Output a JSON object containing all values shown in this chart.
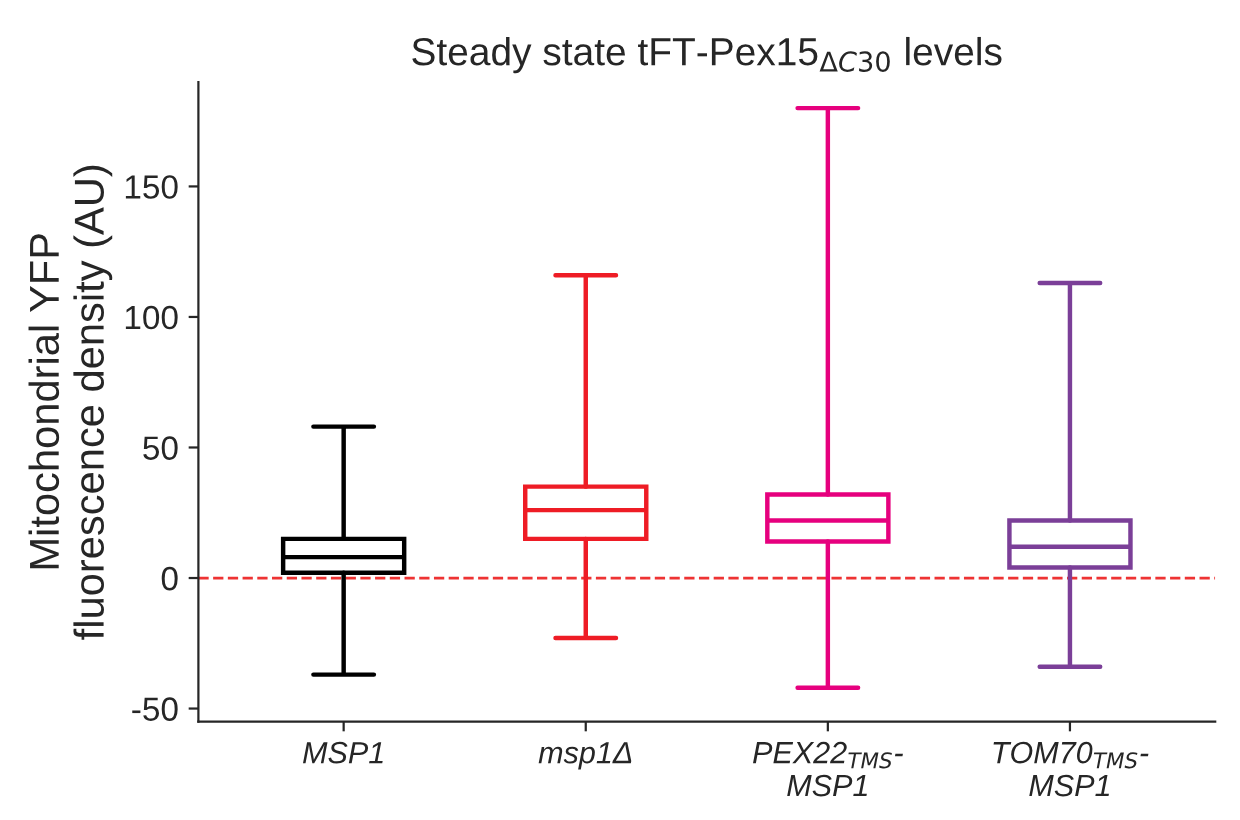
{
  "chart_data": {
    "type": "box",
    "title": "Steady state tFT-Pex15$_{ΔC30}$ levels",
    "ylabel": "Mitochondrial YFP\nfluorescence density (AU)",
    "categories": [
      "MSP1",
      "msp1Δ",
      "PEX22$_{TMS}$-\nMSP1",
      "TOM70$_{TMS}$-\nMSP1"
    ],
    "ylim": [
      -55,
      190
    ],
    "yticks": [
      -50,
      0,
      50,
      100,
      150
    ],
    "grid": false,
    "legend": false,
    "colors": [
      "#000000",
      "#ee1c25",
      "#e6007e",
      "#7b3f98"
    ],
    "ref_lines": [
      {
        "axis": "y",
        "value": 0,
        "label": null,
        "color": "#ee3333",
        "line_style": "dashed"
      }
    ],
    "boxes": [
      {
        "low": -37,
        "q1": 2,
        "median": 8,
        "q3": 15,
        "high": 58
      },
      {
        "low": -23,
        "q1": 15,
        "median": 26,
        "q3": 35,
        "high": 116
      },
      {
        "low": -42,
        "q1": 14,
        "median": 22,
        "q3": 32,
        "high": 180
      },
      {
        "low": -34,
        "q1": 4,
        "median": 12,
        "q3": 22,
        "high": 113
      }
    ]
  }
}
